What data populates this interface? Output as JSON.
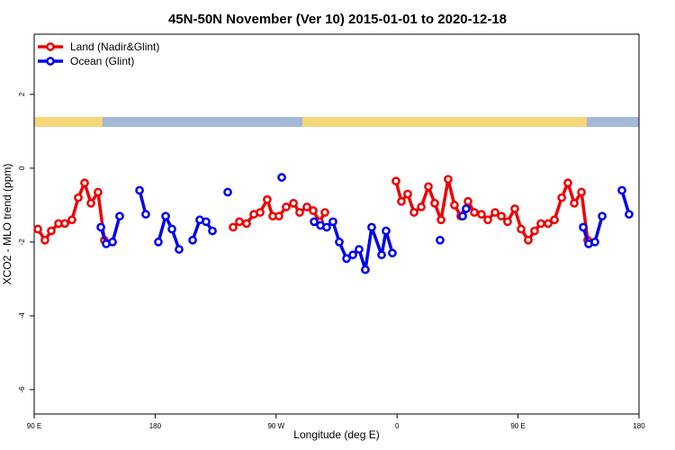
{
  "chart_data": {
    "type": "line",
    "title": "45N-50N November (Ver 10)   2015-01-01 to 2020-12-18",
    "x_label": "Longitude (deg E)",
    "y_label": "XCO2 - MLO trend (ppm)",
    "xlim": [
      90,
      540
    ],
    "xticks": [
      {
        "value": 90,
        "label": "90 E"
      },
      180,
      {
        "value": 270,
        "label": "90 W"
      },
      {
        "value": 360,
        "label": "0"
      },
      {
        "value": 450,
        "label": "90 E"
      },
      {
        "value": 540,
        "label": "180"
      }
    ],
    "ylim": [
      -6.66,
      3.63
    ],
    "yticks": [
      -6,
      -4,
      -2,
      0,
      2
    ],
    "legend": "top-left",
    "series": [
      {
        "name": "Land (Nadir&Glint)",
        "color": "#ee0000",
        "x": [
          92.7,
          98.0,
          102.7,
          108.1,
          112.8,
          118.1,
          122.8,
          127.5,
          132.2,
          137.5,
          142.2,
          null,
          238.0,
          242.7,
          248.0,
          253.4,
          258.1,
          263.4,
          267.5,
          272.1,
          277.5,
          282.9,
          287.5,
          292.9,
          297.6,
          302.3,
          306.3,
          null,
          359.2,
          363.2,
          367.9,
          372.6,
          378.0,
          383.3,
          388.0,
          392.7,
          398.0,
          402.7,
          407.4,
          412.8,
          417.5,
          422.8,
          427.5,
          432.9,
          437.6,
          442.2,
          447.6,
          452.3,
          457.6,
          462.3,
          467.0,
          472.4,
          477.1,
          482.5,
          487.1,
          491.8,
          497.2,
          501.8
        ],
        "values": [
          -1.65,
          -1.95,
          -1.7,
          -1.5,
          -1.5,
          -1.4,
          -0.8,
          -0.4,
          -0.95,
          -0.65,
          -1.95,
          null,
          -1.6,
          -1.45,
          -1.5,
          -1.25,
          -1.2,
          -0.85,
          -1.3,
          -1.3,
          -1.05,
          -0.95,
          -1.2,
          -1.05,
          -1.15,
          -1.45,
          -1.2,
          null,
          -0.35,
          -0.9,
          -0.7,
          -1.2,
          -1.05,
          -0.5,
          -0.95,
          -1.4,
          -0.3,
          -1.0,
          -1.3,
          -0.9,
          -1.2,
          -1.25,
          -1.4,
          -1.2,
          -1.3,
          -1.45,
          -1.1,
          -1.65,
          -1.95,
          -1.7,
          -1.5,
          -1.5,
          -1.4,
          -0.8,
          -0.4,
          -0.95,
          -0.65,
          -1.95
        ]
      },
      {
        "name": "Ocean (Glint)",
        "color": "#0000ee",
        "x": [
          139.6,
          143.6,
          148.3,
          153.6,
          null,
          168.4,
          173.0,
          null,
          182.4,
          187.8,
          192.5,
          197.8,
          null,
          207.9,
          213.2,
          217.9,
          222.6,
          null,
          234.0,
          null,
          274.2,
          null,
          298.3,
          303.0,
          307.6,
          312.3,
          317.0,
          322.4,
          327.1,
          331.7,
          336.4,
          341.1,
          348.5,
          351.8,
          356.5,
          null,
          392.0,
          null,
          408.8,
          411.4,
          null,
          498.5,
          502.5,
          507.2,
          512.6,
          null,
          527.3,
          532.6
        ],
        "values": [
          -1.6,
          -2.05,
          -2.0,
          -1.3,
          null,
          -0.6,
          -1.25,
          null,
          -2.0,
          -1.3,
          -1.65,
          -2.2,
          null,
          -1.95,
          -1.4,
          -1.45,
          -1.7,
          null,
          -0.65,
          null,
          -0.25,
          null,
          -1.45,
          -1.55,
          -1.6,
          -1.45,
          -2.0,
          -2.45,
          -2.35,
          -2.2,
          -2.75,
          -1.6,
          -2.35,
          -1.7,
          -2.3,
          null,
          -1.95,
          null,
          -1.3,
          -1.1,
          null,
          -1.6,
          -2.05,
          -2.0,
          -1.3,
          null,
          -0.6,
          -1.25
        ]
      }
    ]
  }
}
